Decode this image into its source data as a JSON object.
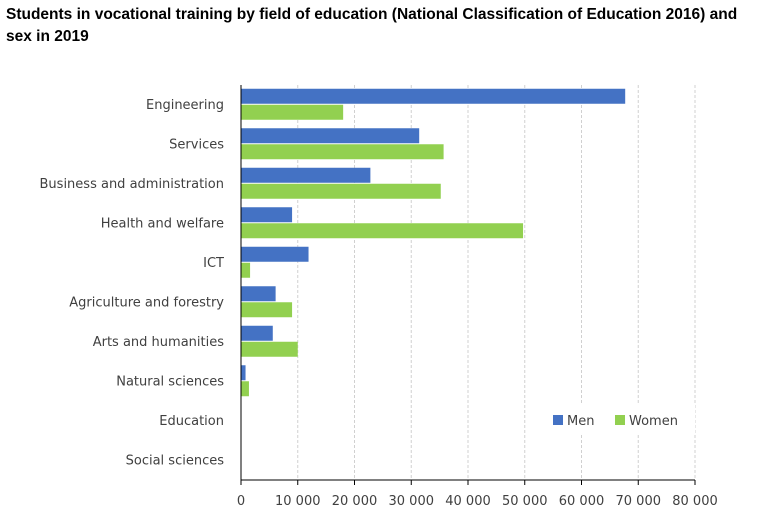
{
  "chart_data": {
    "type": "bar",
    "orientation": "horizontal",
    "title": "Students in vocational training by field of education (National Classification of Education 2016) and sex in 2019",
    "categories": [
      "Engineering",
      "Services",
      "Business and administration",
      "Health and welfare",
      "ICT",
      "Agriculture and forestry",
      "Arts and humanities",
      "Natural sciences",
      "Education",
      "Social sciences"
    ],
    "series": [
      {
        "name": "Men",
        "color": "#4472C4",
        "values": [
          67700,
          31400,
          22800,
          9000,
          11900,
          6100,
          5600,
          800,
          0,
          0
        ]
      },
      {
        "name": "Women",
        "color": "#92D050",
        "values": [
          18000,
          35700,
          35200,
          49700,
          1600,
          9000,
          10000,
          1400,
          0,
          0
        ]
      }
    ],
    "xlim": [
      0,
      80000
    ],
    "xticks": [
      0,
      10000,
      20000,
      30000,
      40000,
      50000,
      60000,
      70000,
      80000
    ],
    "xtick_labels": [
      "0",
      "10 000",
      "20 000",
      "30 000",
      "40 000",
      "50 000",
      "60 000",
      "70 000",
      "80 000"
    ],
    "grid": true,
    "legend": "bottom-right"
  }
}
